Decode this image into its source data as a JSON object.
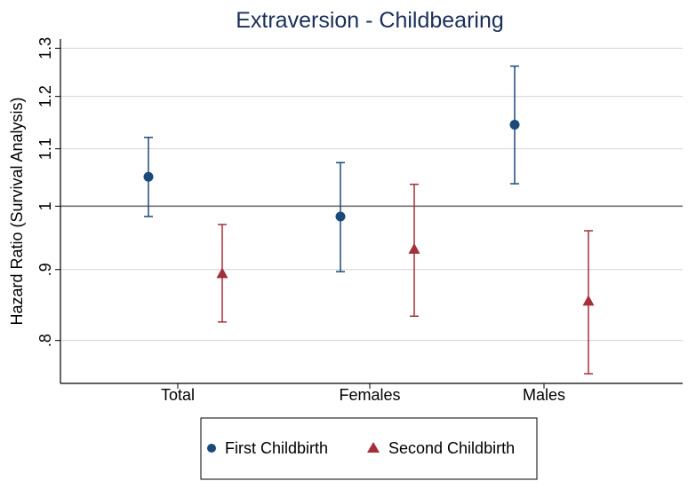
{
  "chart_data": {
    "type": "scatter",
    "subtype": "point-estimate-with-confidence-intervals",
    "title": "Extraversion - Childbearing",
    "xlabel": "",
    "ylabel": "Hazard Ratio (Survival Analysis)",
    "y_scale": "log",
    "ylim": [
      0.745,
      1.32
    ],
    "y_ticks": [
      {
        "value": 0.8,
        "label": ".8"
      },
      {
        "value": 0.9,
        "label": ".9"
      },
      {
        "value": 1.0,
        "label": "1"
      },
      {
        "value": 1.1,
        "label": "1.1"
      },
      {
        "value": 1.2,
        "label": "1.2"
      },
      {
        "value": 1.3,
        "label": "1.3"
      }
    ],
    "reference_line": 1.0,
    "categories": [
      "Total",
      "Females",
      "Males"
    ],
    "series": [
      {
        "name": "First Childbirth",
        "color": "#1a4a7a",
        "marker": "circle",
        "estimates": [
          1.05,
          0.983,
          1.145
        ],
        "ci_lower": [
          0.983,
          0.897,
          1.038
        ],
        "ci_upper": [
          1.121,
          1.075,
          1.262
        ]
      },
      {
        "name": "Second Childbirth",
        "color": "#a3303a",
        "marker": "triangle",
        "estimates": [
          0.894,
          0.931,
          0.854
        ],
        "ci_lower": [
          0.825,
          0.833,
          0.757
        ],
        "ci_upper": [
          0.97,
          1.037,
          0.96
        ]
      }
    ],
    "legend": {
      "position": "bottom-center"
    },
    "colors": {
      "title": "#1a2e5a",
      "grid": "#d4d4d4",
      "reference_line": "#707070",
      "axis": "#000000"
    }
  }
}
